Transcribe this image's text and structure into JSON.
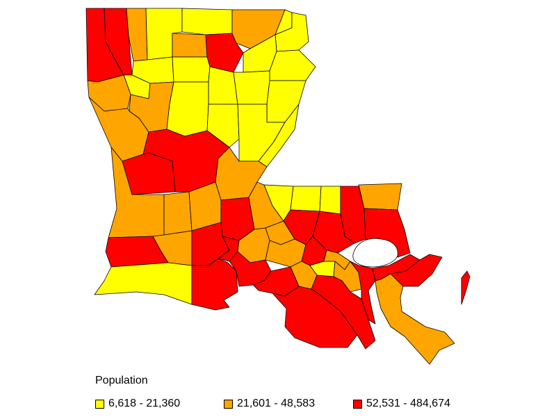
{
  "legend": {
    "title": "Population",
    "items": [
      {
        "label": "6,618 - 21,360",
        "color": "#ffff00",
        "class": "low"
      },
      {
        "label": "21,601 - 48,583",
        "color": "#ffa500",
        "class": "mid"
      },
      {
        "label": "52,531 - 484,674",
        "color": "#ff0000",
        "class": "high"
      }
    ]
  },
  "map": {
    "region": "Louisiana",
    "unit": "parish",
    "colors": {
      "low": "#ffff00",
      "mid": "#ffa500",
      "high": "#ff0000",
      "border": "#000000",
      "water": "#ffffff"
    }
  }
}
